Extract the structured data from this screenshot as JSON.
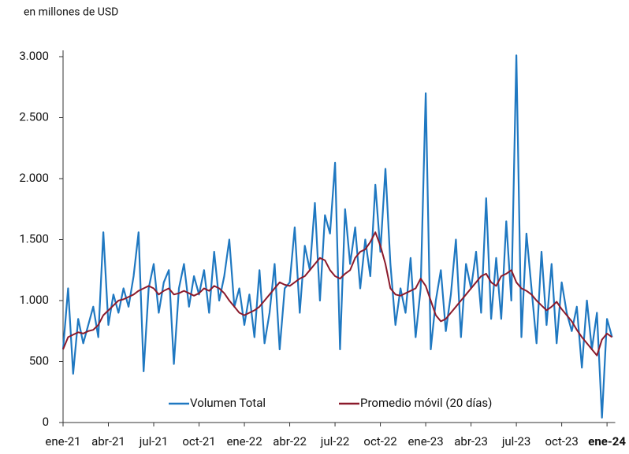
{
  "chart_data": {
    "type": "line",
    "subtitle": "en millones de USD",
    "categories": [
      "ene-21",
      null,
      null,
      null,
      null,
      null,
      null,
      null,
      null,
      "abr-21",
      null,
      null,
      null,
      null,
      null,
      null,
      null,
      null,
      "jul-21",
      null,
      null,
      null,
      null,
      null,
      null,
      null,
      null,
      "oct-21",
      null,
      null,
      null,
      null,
      null,
      null,
      null,
      null,
      "ene-22",
      null,
      null,
      null,
      null,
      null,
      null,
      null,
      null,
      "abr-22",
      null,
      null,
      null,
      null,
      null,
      null,
      null,
      null,
      "jul-22",
      null,
      null,
      null,
      null,
      null,
      null,
      null,
      null,
      "oct-22",
      null,
      null,
      null,
      null,
      null,
      null,
      null,
      null,
      "ene-23",
      null,
      null,
      null,
      null,
      null,
      null,
      null,
      null,
      "abr-23",
      null,
      null,
      null,
      null,
      null,
      null,
      null,
      null,
      "jul-23",
      null,
      null,
      null,
      null,
      null,
      null,
      null,
      null,
      "oct-23",
      null,
      null,
      null,
      null,
      null,
      null,
      null,
      null,
      "ene-24",
      null
    ],
    "series": [
      {
        "name": "Volumen Total",
        "color": "#1f78c1",
        "values": [
          600,
          1100,
          400,
          850,
          650,
          800,
          950,
          700,
          1560,
          800,
          1050,
          900,
          1100,
          950,
          1200,
          1560,
          420,
          1100,
          1300,
          900,
          1150,
          1250,
          480,
          1100,
          1300,
          950,
          1200,
          1050,
          1250,
          900,
          1400,
          1000,
          1200,
          1500,
          950,
          1100,
          800,
          1050,
          700,
          1250,
          650,
          900,
          1300,
          600,
          1100,
          1150,
          1600,
          900,
          1450,
          1250,
          1800,
          1000,
          1700,
          1550,
          2130,
          600,
          1750,
          1300,
          1600,
          1100,
          1500,
          1200,
          1950,
          1400,
          2080,
          1300,
          800,
          1100,
          900,
          1350,
          700,
          1100,
          2700,
          600,
          1000,
          1250,
          750,
          1050,
          1500,
          700,
          1300,
          1100,
          1400,
          900,
          1840,
          850,
          1350,
          850,
          1650,
          1000,
          3010,
          700,
          1550,
          1100,
          650,
          1400,
          800,
          1300,
          650,
          1150,
          900,
          750,
          950,
          450,
          1000,
          600,
          900,
          40,
          850,
          700
        ]
      },
      {
        "name": "Promedio móvil (20 días)",
        "color": "#8b1a2b",
        "values": [
          600,
          700,
          720,
          740,
          730,
          750,
          760,
          800,
          880,
          920,
          960,
          1000,
          1010,
          1030,
          1050,
          1080,
          1100,
          1120,
          1100,
          1050,
          1080,
          1100,
          1050,
          1060,
          1080,
          1060,
          1040,
          1060,
          1100,
          1080,
          1120,
          1100,
          1060,
          1000,
          950,
          900,
          880,
          900,
          920,
          950,
          1000,
          1050,
          1100,
          1150,
          1130,
          1120,
          1150,
          1180,
          1200,
          1250,
          1300,
          1350,
          1330,
          1250,
          1200,
          1180,
          1220,
          1250,
          1350,
          1400,
          1420,
          1480,
          1560,
          1450,
          1300,
          1100,
          1050,
          1040,
          1060,
          1080,
          1100,
          1180,
          1120,
          1000,
          880,
          830,
          850,
          900,
          950,
          1000,
          1050,
          1100,
          1150,
          1200,
          1220,
          1150,
          1120,
          1200,
          1220,
          1250,
          1150,
          1100,
          1080,
          1050,
          1000,
          960,
          920,
          950,
          990,
          930,
          880,
          830,
          760,
          700,
          650,
          600,
          550,
          680,
          730,
          700
        ]
      }
    ],
    "ylim": [
      0,
      3000
    ],
    "yticks": [
      0,
      500,
      {
        "value": 1000,
        "label": "1.000"
      },
      {
        "value": 1500,
        "label": "1.500"
      },
      {
        "value": 2000,
        "label": "2.000"
      },
      {
        "value": 2500,
        "label": "2.500"
      },
      {
        "value": 3000,
        "label": "3.000"
      }
    ],
    "grid": false,
    "legend": "bottom"
  }
}
